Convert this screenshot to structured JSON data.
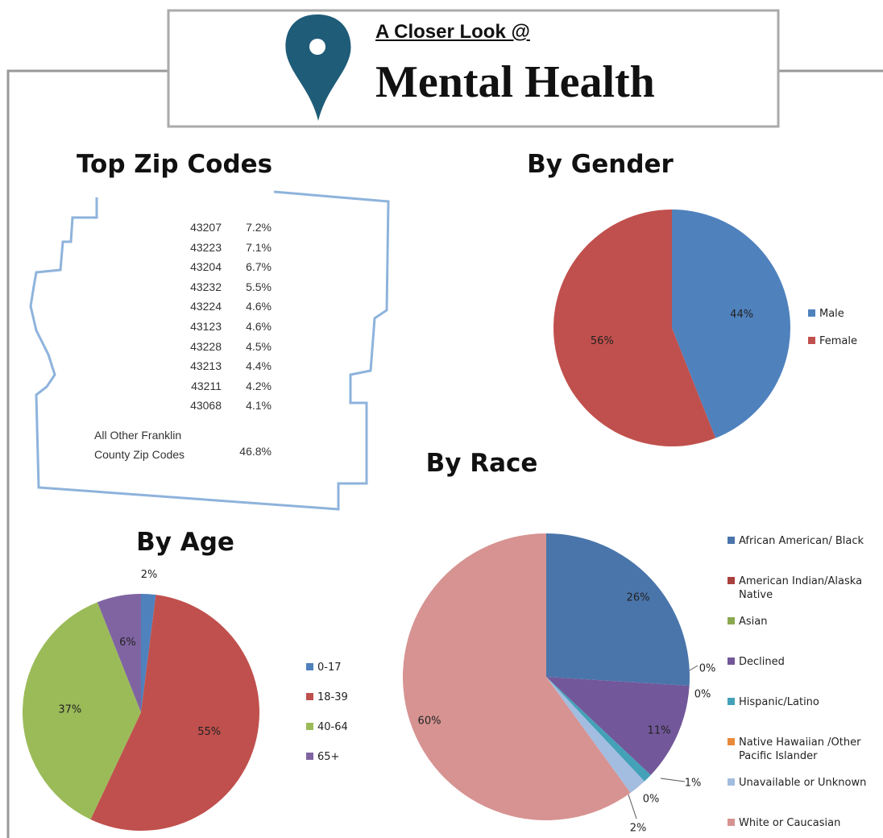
{
  "header": {
    "kicker": "A Closer Look @",
    "title": "Mental Health"
  },
  "zip_codes": {
    "title": "Top Zip Codes",
    "rows": [
      [
        "43207",
        "7.2%"
      ],
      [
        "43223",
        "7.1%"
      ],
      [
        "43204",
        "6.7%"
      ],
      [
        "43232",
        "5.5%"
      ],
      [
        "43224",
        "4.6%"
      ],
      [
        "43123",
        "4.6%"
      ],
      [
        "43228",
        "4.5%"
      ],
      [
        "43213",
        "4.4%"
      ],
      [
        "43211",
        "4.2%"
      ],
      [
        "43068",
        "4.1%"
      ]
    ],
    "other": [
      "All Other Franklin County Zip Codes",
      "46.8%"
    ]
  },
  "chart_data": [
    {
      "type": "pie",
      "title": "By Gender",
      "categories": [
        "Male",
        "Female"
      ],
      "values": [
        44,
        56
      ],
      "value_labels": [
        "44%",
        "56%"
      ],
      "colors": [
        "#4f81bd",
        "#c0504d"
      ],
      "legend": "right"
    },
    {
      "type": "pie",
      "title": "By Age",
      "categories": [
        "0-17",
        "18-39",
        "40-64",
        "65+"
      ],
      "values": [
        2,
        55,
        37,
        6
      ],
      "value_labels": [
        "2%",
        "55%",
        "37%",
        "6%"
      ],
      "colors": [
        "#4f81bd",
        "#c0504d",
        "#9bbb59",
        "#8064a2"
      ],
      "legend": "right"
    },
    {
      "type": "pie",
      "title": "By Race",
      "categories": [
        "African American/ Black",
        "American Indian/Alaska Native",
        "Asian",
        "Declined",
        "Hispanic/Latino",
        "Native Hawaiian /Other Pacific Islander",
        "Unavailable or Unknown",
        "White or Caucasian"
      ],
      "values": [
        26,
        0,
        0,
        11,
        1,
        0,
        2,
        60
      ],
      "value_labels": [
        "26%",
        "0%",
        "0%",
        "11%",
        "1%",
        "0%",
        "2%",
        "60%"
      ],
      "colors": [
        "#4a75ab",
        "#a9403d",
        "#8aa84f",
        "#72579a",
        "#43a1b8",
        "#e9893b",
        "#a3bde0",
        "#d69391"
      ],
      "legend": "right"
    }
  ]
}
